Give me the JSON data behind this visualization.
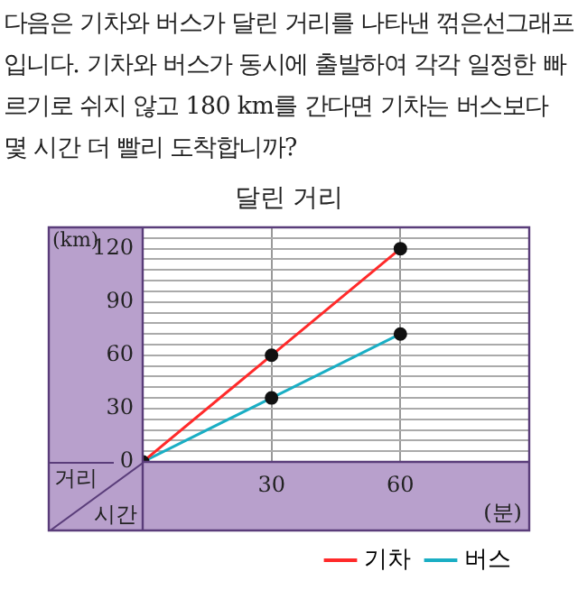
{
  "chart_data": {
    "type": "line",
    "title": "달린 거리",
    "annotations": [
      "다음은 기차와 버스가 달린 거리를 나타낸 꺾은선그래프입니다. 기차와 버스가 동시에 출발하여 각각 일정한 빠르기로 쉬지 않고 180 km를 간다면 기차는 버스보다 몇 시간 더 빨리 도착합니까?",
      "거리",
      "시간"
    ],
    "xlabel": "(분)",
    "ylabel": "(km)",
    "x": [
      0,
      30,
      60
    ],
    "series": [
      {
        "name": "기차",
        "color": "#ff2a2a",
        "values": [
          0,
          60,
          120
        ]
      },
      {
        "name": "버스",
        "color": "#1aaec4",
        "values": [
          0,
          36,
          72
        ]
      }
    ],
    "xlim": [
      0,
      90
    ],
    "xticks": [
      30,
      60
    ],
    "ylim": [
      0,
      132
    ],
    "yticks": [
      0,
      {
        "value": 6,
        "label": null
      },
      {
        "value": 12,
        "label": null
      },
      {
        "value": 18,
        "label": null
      },
      {
        "value": 24,
        "label": null
      },
      30,
      {
        "value": 36,
        "label": null
      },
      {
        "value": 42,
        "label": null
      },
      {
        "value": 48,
        "label": null
      },
      {
        "value": 54,
        "label": null
      },
      60,
      {
        "value": 66,
        "label": null
      },
      {
        "value": 72,
        "label": null
      },
      {
        "value": 78,
        "label": null
      },
      {
        "value": 84,
        "label": null
      },
      90,
      {
        "value": 96,
        "label": null
      },
      {
        "value": 102,
        "label": null
      },
      {
        "value": 108,
        "label": null
      },
      {
        "value": 114,
        "label": null
      },
      120,
      {
        "value": 126,
        "label": null
      }
    ],
    "grid": true,
    "legend": "bottom right",
    "marker": "circle",
    "line_style": "solid"
  }
}
